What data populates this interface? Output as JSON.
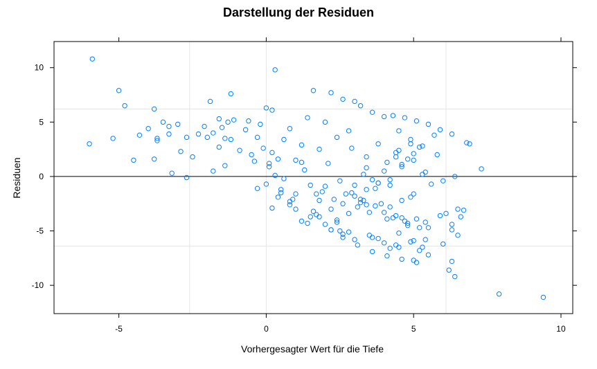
{
  "chart_data": {
    "type": "scatter",
    "title": "Darstellung der Residuen",
    "xlabel": "Vorhergesagter Wert für die Tiefe",
    "ylabel": "Residuen",
    "xlim": [
      -7.2,
      10.4
    ],
    "ylim": [
      -12.6,
      12.4
    ],
    "x_ticks": [
      -5,
      0,
      5,
      10
    ],
    "y_ticks": [
      -10,
      -5,
      0,
      5,
      10
    ],
    "x_tick_labels": [
      "-5",
      "0",
      "5",
      "10"
    ],
    "y_tick_labels": [
      "-10",
      "-5",
      "0",
      "5",
      "10"
    ],
    "grid": true,
    "grid_x": [
      -2.6,
      0,
      6.1
    ],
    "grid_y": [
      6.2,
      -6.4
    ],
    "reference_line_y": 0,
    "marker": "circle-open",
    "series_color": "#0080ff",
    "series": [
      {
        "x": [
          -5.9,
          -6.0,
          -5.2,
          -5.0,
          -4.8,
          -4.5,
          -4.3,
          -4.0,
          -3.8,
          -3.7,
          -3.8,
          -3.5,
          -3.3,
          -3.2,
          -3.0,
          -2.9,
          -2.7,
          -2.5,
          -2.3,
          -2.1,
          -2.0,
          -1.9,
          -1.8,
          -1.6,
          -1.5,
          -1.4,
          -1.3,
          -1.2,
          -1.1,
          -1.4,
          -1.6,
          -1.8,
          -2.7,
          -3.3,
          -3.7,
          -1.2,
          -0.9,
          -0.7,
          -0.6,
          -0.5,
          -0.4,
          -0.3,
          -0.2,
          -0.1,
          0.0,
          0.1,
          0.2,
          0.3,
          0.4,
          0.6,
          0.8,
          1.0,
          0.3,
          0.2,
          0.1,
          1.2,
          1.4,
          1.6,
          1.8,
          2.0,
          2.2,
          2.4,
          2.6,
          2.8,
          3.0,
          3.2,
          3.4,
          3.6,
          3.8,
          4.0,
          1.5,
          1.9,
          2.3,
          2.7,
          3.1,
          3.5,
          3.9,
          4.3,
          4.7,
          5.1,
          5.5,
          5.9,
          6.3,
          6.7,
          6.9,
          7.3,
          7.9,
          9.4,
          6.2,
          6.3,
          6.4,
          6.5,
          6.6,
          6.1,
          6.0,
          6.5,
          6.3,
          5.5,
          5.0,
          4.5,
          4.0,
          3.5,
          3.0,
          2.5,
          2.0,
          1.5,
          1.0,
          0.5,
          0.8,
          1.2,
          1.7,
          2.2,
          2.6,
          3.1,
          3.6,
          4.1,
          4.6,
          5.1,
          5.3,
          5.4,
          5.2,
          4.8,
          4.4,
          4.2,
          4.6,
          5.0,
          5.6,
          6.0,
          6.4,
          6.8,
          4.3,
          4.7,
          5.1,
          5.5,
          5.9,
          6.3,
          4.5,
          4.9,
          5.3,
          5.7,
          4.4,
          4.8,
          5.2,
          4.6,
          5.0,
          5.4,
          4.2,
          4.9,
          5.3,
          3.8,
          4.1,
          4.5,
          4.9,
          3.3,
          3.7,
          4.0,
          4.4,
          2.8,
          3.2,
          3.6,
          2.4,
          2.9,
          3.4,
          1.8,
          2.2,
          2.6,
          3.0,
          3.4,
          3.8,
          4.2,
          4.6,
          5.0,
          0.5,
          0.9,
          1.3,
          1.7,
          2.1,
          2.5,
          2.9,
          3.3,
          3.7,
          4.1,
          4.5,
          4.9,
          0.0,
          0.4,
          0.8,
          1.2,
          1.6,
          2.0,
          2.4,
          2.8,
          3.2,
          3.6,
          4.0,
          4.4,
          4.8,
          5.2,
          -0.3,
          0.2,
          0.6,
          1.0,
          1.4,
          1.8,
          2.2,
          2.6,
          3.0,
          3.4,
          3.8,
          4.2,
          4.6,
          5.0,
          5.4,
          5.8
        ],
        "y": [
          10.8,
          3.0,
          3.5,
          7.9,
          6.5,
          1.5,
          3.8,
          4.4,
          6.2,
          3.5,
          1.6,
          5.0,
          4.6,
          0.3,
          4.8,
          2.3,
          3.6,
          1.8,
          3.9,
          4.6,
          3.6,
          6.9,
          4.0,
          2.7,
          4.5,
          3.5,
          5.0,
          3.4,
          5.2,
          1.0,
          5.3,
          0.5,
          -0.1,
          3.9,
          3.3,
          7.6,
          2.4,
          4.3,
          5.1,
          2.0,
          1.4,
          3.6,
          4.8,
          2.6,
          6.3,
          0.9,
          2.2,
          9.8,
          1.6,
          3.4,
          4.4,
          1.5,
          0.1,
          6.1,
          1.2,
          2.9,
          5.4,
          7.9,
          2.5,
          5.0,
          7.7,
          3.6,
          7.1,
          4.2,
          6.9,
          6.5,
          1.8,
          5.9,
          3.0,
          5.5,
          -0.8,
          -1.4,
          -2.1,
          -1.6,
          -2.8,
          -3.3,
          -2.5,
          -3.8,
          -4.1,
          -3.9,
          -4.7,
          -3.6,
          -4.4,
          -3.1,
          3.0,
          0.7,
          -10.8,
          -11.1,
          -8.6,
          -7.8,
          -9.2,
          -5.4,
          -3.7,
          -3.4,
          -6.2,
          -3.0,
          -4.9,
          -7.2,
          -7.7,
          -6.5,
          -6.1,
          -5.4,
          -5.8,
          -5.0,
          -4.4,
          -3.7,
          -3.0,
          -1.5,
          -2.3,
          -4.1,
          -3.5,
          -4.9,
          -5.6,
          -6.3,
          -6.9,
          -7.3,
          -7.6,
          -7.9,
          -6.5,
          -5.8,
          -4.7,
          -4.3,
          -3.6,
          -2.8,
          -2.2,
          -1.6,
          -0.7,
          -0.4,
          0.0,
          3.1,
          5.6,
          5.4,
          5.1,
          4.8,
          4.3,
          3.9,
          4.2,
          3.4,
          2.8,
          3.8,
          2.2,
          1.6,
          2.7,
          0.9,
          1.5,
          0.4,
          -0.8,
          -1.9,
          0.2,
          -0.6,
          1.3,
          2.4,
          3.0,
          -2.2,
          -1.1,
          0.5,
          1.8,
          -3.4,
          -2.1,
          -0.3,
          -4.2,
          -1.5,
          0.8,
          -3.7,
          -3.0,
          -2.5,
          -1.8,
          -1.2,
          -0.6,
          -0.3,
          1.1,
          2.1,
          -1.2,
          -2.1,
          0.6,
          -1.6,
          1.2,
          -0.4,
          2.6,
          0.2,
          -2.7,
          -3.9,
          -5.2,
          -6.0,
          -0.7,
          -1.9,
          -2.6,
          1.3,
          -3.2,
          -0.9,
          -4.0,
          -5.1,
          -2.4,
          -5.6,
          -3.3,
          -6.3,
          -4.5,
          -6.8,
          -1.1,
          -2.9,
          -0.2,
          -1.6,
          -4.3,
          -2.2,
          -4.9,
          -5.3,
          -0.8,
          -2.6,
          -5.7,
          -6.6,
          -3.8,
          -5.9,
          -4.2,
          2.0
        ]
      }
    ]
  }
}
